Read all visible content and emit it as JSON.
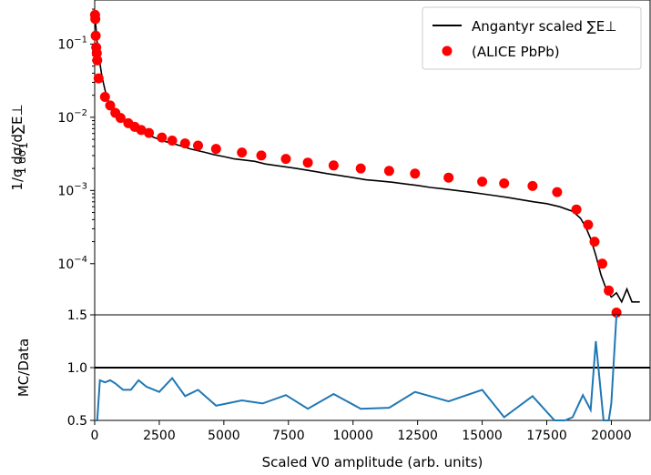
{
  "chart_data": [
    {
      "type": "line",
      "panel": "main",
      "yscale": "log",
      "xlim": [
        0,
        21500
      ],
      "ylim": [
        2e-05,
        0.4
      ],
      "ylabel": "1/σ dσ/d∑E⊥",
      "yticks": [
        {
          "value": 0.1,
          "mant": "10",
          "exp": "−1"
        },
        {
          "value": 0.01,
          "mant": "10",
          "exp": "−2"
        },
        {
          "value": 0.001,
          "mant": "10",
          "exp": "−3"
        },
        {
          "value": 0.0001,
          "mant": "10",
          "exp": "−4"
        }
      ],
      "legend": {
        "position": "top-right",
        "entries": [
          {
            "label": "Angantyr scaled ∑E⊥",
            "kind": "line",
            "color": "#000000"
          },
          {
            "label": "(ALICE PbPb)",
            "kind": "marker",
            "color": "#ff0000"
          }
        ]
      },
      "series": [
        {
          "name": "Angantyr scaled ∑E⊥",
          "color": "#000000",
          "points": [
            [
              0,
              0.26
            ],
            [
              30,
              0.2
            ],
            [
              60,
              0.15
            ],
            [
              100,
              0.1
            ],
            [
              150,
              0.075
            ],
            [
              200,
              0.055
            ],
            [
              260,
              0.04
            ],
            [
              330,
              0.03
            ],
            [
              420,
              0.022
            ],
            [
              520,
              0.017
            ],
            [
              640,
              0.014
            ],
            [
              780,
              0.0115
            ],
            [
              930,
              0.01
            ],
            [
              1100,
              0.0088
            ],
            [
              1300,
              0.0078
            ],
            [
              1500,
              0.0072
            ],
            [
              1700,
              0.0066
            ],
            [
              1900,
              0.0061
            ],
            [
              2100,
              0.0057
            ],
            [
              2300,
              0.0053
            ],
            [
              2500,
              0.005
            ],
            [
              2700,
              0.0047
            ],
            [
              2900,
              0.0045
            ],
            [
              3100,
              0.0043
            ],
            [
              3400,
              0.004
            ],
            [
              3700,
              0.0037
            ],
            [
              4000,
              0.0035
            ],
            [
              4300,
              0.0033
            ],
            [
              4600,
              0.0031
            ],
            [
              5000,
              0.0029
            ],
            [
              5400,
              0.0027
            ],
            [
              5800,
              0.0026
            ],
            [
              6200,
              0.0025
            ],
            [
              6600,
              0.0023
            ],
            [
              7000,
              0.0022
            ],
            [
              7400,
              0.0021
            ],
            [
              7800,
              0.002
            ],
            [
              8200,
              0.0019
            ],
            [
              8600,
              0.0018
            ],
            [
              9000,
              0.0017
            ],
            [
              9500,
              0.0016
            ],
            [
              10000,
              0.0015
            ],
            [
              10500,
              0.0014
            ],
            [
              11000,
              0.00135
            ],
            [
              11500,
              0.0013
            ],
            [
              12000,
              0.00123
            ],
            [
              12500,
              0.00117
            ],
            [
              13000,
              0.0011
            ],
            [
              13500,
              0.00105
            ],
            [
              14000,
              0.001
            ],
            [
              14500,
              0.00095
            ],
            [
              15000,
              0.0009
            ],
            [
              15500,
              0.00085
            ],
            [
              16000,
              0.0008
            ],
            [
              16500,
              0.00075
            ],
            [
              17000,
              0.0007
            ],
            [
              17500,
              0.00066
            ],
            [
              18000,
              0.0006
            ],
            [
              18500,
              0.00052
            ],
            [
              18800,
              0.00042
            ],
            [
              19000,
              0.00032
            ],
            [
              19200,
              0.00022
            ],
            [
              19400,
              0.00013
            ],
            [
              19600,
              7e-05
            ],
            [
              19800,
              4.5e-05
            ],
            [
              20000,
              3.5e-05
            ],
            [
              20200,
              4e-05
            ],
            [
              20400,
              3e-05
            ],
            [
              20600,
              4.5e-05
            ],
            [
              20800,
              3e-05
            ],
            [
              21100,
              3e-05
            ]
          ]
        },
        {
          "name": "(ALICE PbPb)",
          "color": "#ff0000",
          "points": [
            [
              15,
              0.25
            ],
            [
              25,
              0.22
            ],
            [
              40,
              0.13
            ],
            [
              60,
              0.09
            ],
            [
              80,
              0.075
            ],
            [
              100,
              0.06
            ],
            [
              150,
              0.034
            ],
            [
              400,
              0.019
            ],
            [
              600,
              0.0145
            ],
            [
              800,
              0.0115
            ],
            [
              1000,
              0.0098
            ],
            [
              1300,
              0.0083
            ],
            [
              1550,
              0.0074
            ],
            [
              1800,
              0.0067
            ],
            [
              2100,
              0.0061
            ],
            [
              2600,
              0.0053
            ],
            [
              3000,
              0.0048
            ],
            [
              3500,
              0.0044
            ],
            [
              4000,
              0.0041
            ],
            [
              4700,
              0.0037
            ],
            [
              5700,
              0.0033
            ],
            [
              6450,
              0.003
            ],
            [
              7400,
              0.0027
            ],
            [
              8250,
              0.0024
            ],
            [
              9250,
              0.0022
            ],
            [
              10300,
              0.002
            ],
            [
              11400,
              0.00185
            ],
            [
              12400,
              0.0017
            ],
            [
              13700,
              0.0015
            ],
            [
              15000,
              0.00132
            ],
            [
              15850,
              0.00125
            ],
            [
              16950,
              0.00115
            ],
            [
              17900,
              0.00095
            ],
            [
              18650,
              0.00055
            ],
            [
              19100,
              0.00034
            ],
            [
              19350,
              0.0002
            ],
            [
              19650,
              0.0001
            ],
            [
              19900,
              4.3e-05
            ],
            [
              20200,
              2.15e-05
            ]
          ]
        }
      ]
    },
    {
      "type": "line",
      "panel": "ratio",
      "ylabel": "MC/Data",
      "xlabel": "Scaled V0 amplitude (arb. units)",
      "xlim": [
        0,
        21500
      ],
      "ylim": [
        0.5,
        1.5
      ],
      "xticks": [
        "0",
        "2500",
        "5000",
        "7500",
        "10000",
        "12500",
        "15000",
        "17500",
        "20000"
      ],
      "yticks": [
        "0.5",
        "1.0",
        "1.5"
      ],
      "reference_line": 1.0,
      "series": [
        {
          "name": "",
          "color": "#1f77b4",
          "points": [
            [
              0,
              0.5
            ],
            [
              100,
              0.5
            ],
            [
              200,
              0.88
            ],
            [
              400,
              0.86
            ],
            [
              600,
              0.88
            ],
            [
              800,
              0.85
            ],
            [
              1100,
              0.79
            ],
            [
              1400,
              0.79
            ],
            [
              1700,
              0.88
            ],
            [
              2000,
              0.82
            ],
            [
              2500,
              0.77
            ],
            [
              3000,
              0.9
            ],
            [
              3500,
              0.73
            ],
            [
              4000,
              0.79
            ],
            [
              4700,
              0.64
            ],
            [
              5700,
              0.69
            ],
            [
              6500,
              0.66
            ],
            [
              7400,
              0.74
            ],
            [
              8250,
              0.61
            ],
            [
              9250,
              0.75
            ],
            [
              10300,
              0.61
            ],
            [
              11400,
              0.62
            ],
            [
              12400,
              0.77
            ],
            [
              13700,
              0.68
            ],
            [
              15000,
              0.79
            ],
            [
              15850,
              0.53
            ],
            [
              16950,
              0.73
            ],
            [
              17800,
              0.5
            ],
            [
              18200,
              0.5
            ],
            [
              18500,
              0.53
            ],
            [
              18900,
              0.74
            ],
            [
              19200,
              0.6
            ],
            [
              19400,
              1.25
            ],
            [
              19700,
              0.5
            ],
            [
              19900,
              0.5
            ],
            [
              20000,
              0.66
            ],
            [
              20200,
              1.5
            ]
          ]
        }
      ]
    }
  ]
}
